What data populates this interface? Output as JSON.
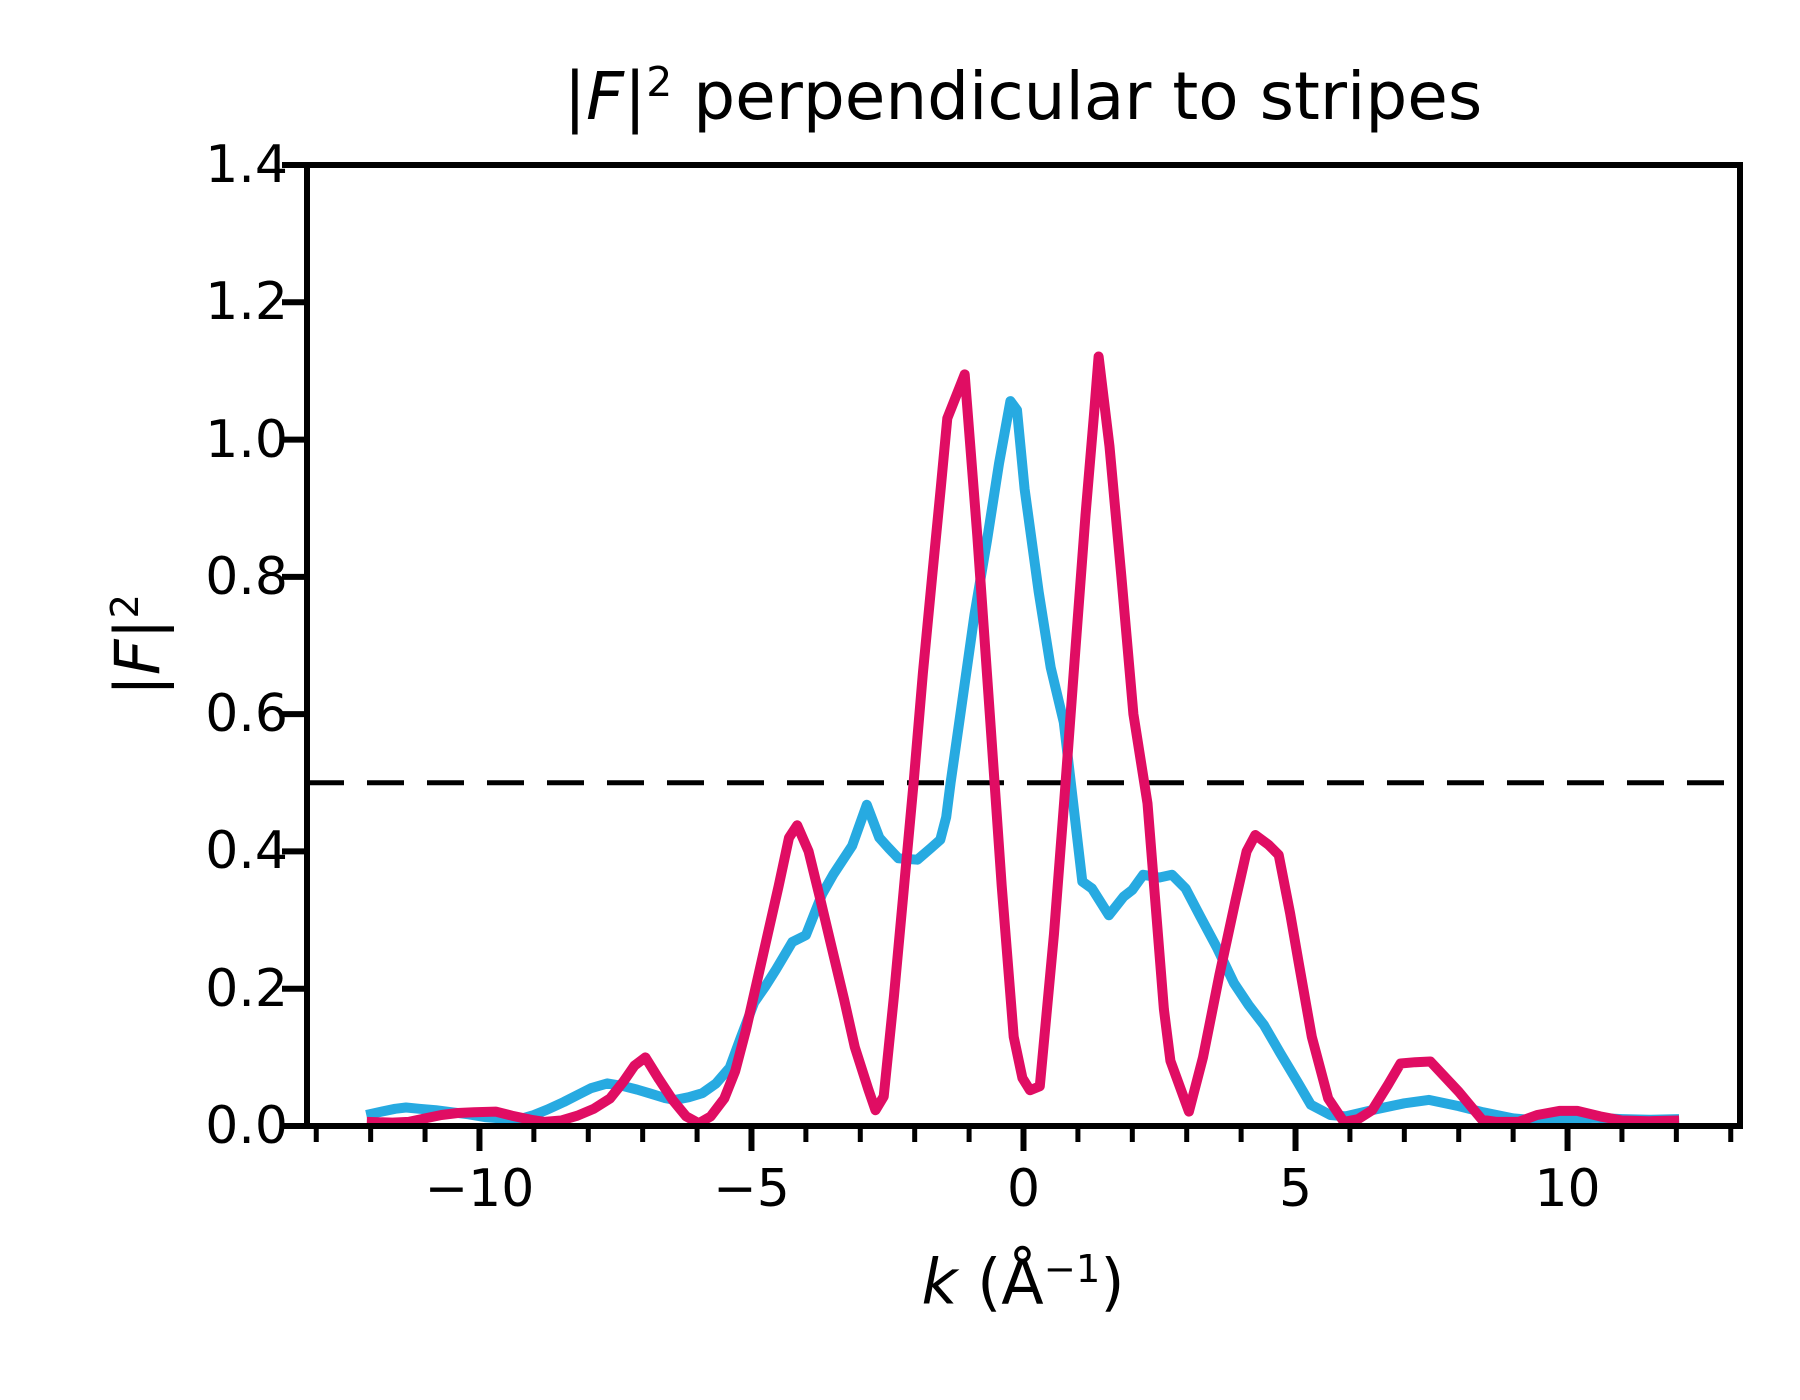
{
  "title": {
    "pre": "|",
    "f": "F",
    "bar": "|",
    "sup": "2",
    "rest": " perpendicular to stripes"
  },
  "ylabel": {
    "pre": "|",
    "f": "F",
    "bar": "|",
    "sup": "2"
  },
  "xlabel": {
    "var": "k",
    "open": " (Å",
    "sup": "−1",
    "close": ")"
  },
  "colors": {
    "blue_series": "#27aae1",
    "crimson_series": "#e00d63",
    "axis": "#000000",
    "reference_line": "#000000",
    "background": "#ffffff"
  },
  "chart_data": {
    "type": "line",
    "title": "|F|² perpendicular to stripes",
    "xlabel": "k (Å⁻¹)",
    "ylabel": "|F|²",
    "xlim": [
      -13.17,
      13.17
    ],
    "ylim": [
      0,
      1.4
    ],
    "grid": false,
    "legend": false,
    "x_ticks": [
      {
        "k": -10,
        "label": "−10"
      },
      {
        "k": -5,
        "label": "−5"
      },
      {
        "k": 0,
        "label": "0"
      },
      {
        "k": 5,
        "label": "5"
      },
      {
        "k": 10,
        "label": "10"
      }
    ],
    "x_minor_ticks": [
      -13,
      -12,
      -11,
      -9,
      -8,
      -7,
      -6,
      -4,
      -3,
      -2,
      -1,
      1,
      2,
      3,
      4,
      6,
      7,
      8,
      9,
      11,
      12,
      13
    ],
    "y_ticks": [
      {
        "v": 0.0,
        "label": "0.0"
      },
      {
        "v": 0.2,
        "label": "0.2"
      },
      {
        "v": 0.4,
        "label": "0.4"
      },
      {
        "v": 0.6,
        "label": "0.6"
      },
      {
        "v": 0.8,
        "label": "0.8"
      },
      {
        "v": 1.0,
        "label": "1.0"
      },
      {
        "v": 1.2,
        "label": "1.2"
      },
      {
        "v": 1.4,
        "label": "1.4"
      }
    ],
    "reference_line": {
      "y": 0.5,
      "style": "dashed",
      "color": "#000000"
    },
    "series": [
      {
        "name": "blue",
        "color": "#27aae1",
        "points": [
          [
            -12.08,
            0.016
          ],
          [
            -11.8,
            0.021
          ],
          [
            -11.55,
            0.025
          ],
          [
            -11.35,
            0.027
          ],
          [
            -11.1,
            0.025
          ],
          [
            -10.8,
            0.023
          ],
          [
            -10.5,
            0.02
          ],
          [
            -10.2,
            0.017
          ],
          [
            -9.9,
            0.013
          ],
          [
            -9.6,
            0.011
          ],
          [
            -9.3,
            0.009
          ],
          [
            -9.0,
            0.016
          ],
          [
            -8.75,
            0.024
          ],
          [
            -8.45,
            0.035
          ],
          [
            -8.2,
            0.045
          ],
          [
            -7.95,
            0.055
          ],
          [
            -7.65,
            0.062
          ],
          [
            -7.35,
            0.058
          ],
          [
            -7.1,
            0.053
          ],
          [
            -6.85,
            0.047
          ],
          [
            -6.6,
            0.041
          ],
          [
            -6.4,
            0.038
          ],
          [
            -6.15,
            0.042
          ],
          [
            -5.9,
            0.048
          ],
          [
            -5.65,
            0.062
          ],
          [
            -5.4,
            0.085
          ],
          [
            -5.2,
            0.128
          ],
          [
            -4.95,
            0.18
          ],
          [
            -4.75,
            0.203
          ],
          [
            -4.55,
            0.228
          ],
          [
            -4.25,
            0.268
          ],
          [
            -4.0,
            0.278
          ],
          [
            -3.7,
            0.338
          ],
          [
            -3.5,
            0.366
          ],
          [
            -3.15,
            0.408
          ],
          [
            -2.88,
            0.468
          ],
          [
            -2.65,
            0.42
          ],
          [
            -2.48,
            0.405
          ],
          [
            -2.3,
            0.39
          ],
          [
            -1.95,
            0.388
          ],
          [
            -1.7,
            0.405
          ],
          [
            -1.53,
            0.417
          ],
          [
            -1.42,
            0.45
          ],
          [
            -1.34,
            0.5
          ],
          [
            -1.16,
            0.6
          ],
          [
            -0.9,
            0.745
          ],
          [
            -0.67,
            0.853
          ],
          [
            -0.45,
            0.965
          ],
          [
            -0.24,
            1.056
          ],
          [
            -0.12,
            1.043
          ],
          [
            0.02,
            0.928
          ],
          [
            0.28,
            0.778
          ],
          [
            0.5,
            0.668
          ],
          [
            0.74,
            0.588
          ],
          [
            1.08,
            0.356
          ],
          [
            1.26,
            0.346
          ],
          [
            1.57,
            0.307
          ],
          [
            1.84,
            0.334
          ],
          [
            2.0,
            0.344
          ],
          [
            2.2,
            0.366
          ],
          [
            2.5,
            0.362
          ],
          [
            2.73,
            0.366
          ],
          [
            2.98,
            0.346
          ],
          [
            3.25,
            0.305
          ],
          [
            3.56,
            0.259
          ],
          [
            3.87,
            0.208
          ],
          [
            4.14,
            0.176
          ],
          [
            4.42,
            0.147
          ],
          [
            4.72,
            0.106
          ],
          [
            5.03,
            0.065
          ],
          [
            5.28,
            0.031
          ],
          [
            5.64,
            0.016
          ],
          [
            5.92,
            0.014
          ],
          [
            6.4,
            0.023
          ],
          [
            7.0,
            0.033
          ],
          [
            7.45,
            0.038
          ],
          [
            8.0,
            0.029
          ],
          [
            8.45,
            0.02
          ],
          [
            9.0,
            0.011
          ],
          [
            9.45,
            0.008
          ],
          [
            10.0,
            0.01
          ],
          [
            10.5,
            0.012
          ],
          [
            11.0,
            0.01
          ],
          [
            11.5,
            0.009
          ],
          [
            12.05,
            0.01
          ]
        ]
      },
      {
        "name": "crimson",
        "color": "#e00d63",
        "points": [
          [
            -12.07,
            0.006
          ],
          [
            -11.6,
            0.005
          ],
          [
            -11.3,
            0.006
          ],
          [
            -11.0,
            0.011
          ],
          [
            -10.7,
            0.016
          ],
          [
            -10.4,
            0.019
          ],
          [
            -10.1,
            0.02
          ],
          [
            -9.7,
            0.021
          ],
          [
            -9.4,
            0.015
          ],
          [
            -9.05,
            0.009
          ],
          [
            -8.8,
            0.006
          ],
          [
            -8.5,
            0.008
          ],
          [
            -8.2,
            0.015
          ],
          [
            -7.9,
            0.025
          ],
          [
            -7.6,
            0.04
          ],
          [
            -7.35,
            0.065
          ],
          [
            -7.15,
            0.088
          ],
          [
            -6.95,
            0.1
          ],
          [
            -6.7,
            0.068
          ],
          [
            -6.45,
            0.038
          ],
          [
            -6.2,
            0.014
          ],
          [
            -5.97,
            0.004
          ],
          [
            -5.75,
            0.014
          ],
          [
            -5.5,
            0.04
          ],
          [
            -5.3,
            0.08
          ],
          [
            -5.1,
            0.14
          ],
          [
            -4.9,
            0.21
          ],
          [
            -4.7,
            0.28
          ],
          [
            -4.5,
            0.35
          ],
          [
            -4.31,
            0.42
          ],
          [
            -4.16,
            0.438
          ],
          [
            -3.95,
            0.4
          ],
          [
            -3.75,
            0.335
          ],
          [
            -3.55,
            0.268
          ],
          [
            -3.3,
            0.185
          ],
          [
            -3.1,
            0.115
          ],
          [
            -2.85,
            0.053
          ],
          [
            -2.72,
            0.023
          ],
          [
            -2.57,
            0.043
          ],
          [
            -2.38,
            0.19
          ],
          [
            -2.2,
            0.345
          ],
          [
            -2.02,
            0.5
          ],
          [
            -1.85,
            0.66
          ],
          [
            -1.68,
            0.8
          ],
          [
            -1.52,
            0.93
          ],
          [
            -1.4,
            1.031
          ],
          [
            -1.08,
            1.095
          ],
          [
            -0.85,
            0.86
          ],
          [
            -0.62,
            0.6
          ],
          [
            -0.4,
            0.35
          ],
          [
            -0.18,
            0.13
          ],
          [
            -0.02,
            0.07
          ],
          [
            0.12,
            0.052
          ],
          [
            0.3,
            0.058
          ],
          [
            0.56,
            0.28
          ],
          [
            0.75,
            0.475
          ],
          [
            0.95,
            0.69
          ],
          [
            1.14,
            0.89
          ],
          [
            1.3,
            1.04
          ],
          [
            1.38,
            1.121
          ],
          [
            1.58,
            0.99
          ],
          [
            1.8,
            0.8
          ],
          [
            2.02,
            0.6
          ],
          [
            2.28,
            0.47
          ],
          [
            2.45,
            0.3
          ],
          [
            2.58,
            0.17
          ],
          [
            2.7,
            0.095
          ],
          [
            3.04,
            0.021
          ],
          [
            3.3,
            0.1
          ],
          [
            3.6,
            0.22
          ],
          [
            3.9,
            0.33
          ],
          [
            4.1,
            0.4
          ],
          [
            4.26,
            0.424
          ],
          [
            4.5,
            0.41
          ],
          [
            4.69,
            0.395
          ],
          [
            4.9,
            0.31
          ],
          [
            5.06,
            0.237
          ],
          [
            5.3,
            0.13
          ],
          [
            5.6,
            0.04
          ],
          [
            5.89,
            0.006
          ],
          [
            6.15,
            0.01
          ],
          [
            6.41,
            0.023
          ],
          [
            6.7,
            0.06
          ],
          [
            6.93,
            0.091
          ],
          [
            7.2,
            0.093
          ],
          [
            7.48,
            0.094
          ],
          [
            8.0,
            0.05
          ],
          [
            8.43,
            0.009
          ],
          [
            8.7,
            0.006
          ],
          [
            9.1,
            0.006
          ],
          [
            9.44,
            0.016
          ],
          [
            9.85,
            0.022
          ],
          [
            10.18,
            0.022
          ],
          [
            10.6,
            0.014
          ],
          [
            11.0,
            0.008
          ],
          [
            11.5,
            0.007
          ],
          [
            12.05,
            0.008
          ]
        ]
      }
    ]
  }
}
